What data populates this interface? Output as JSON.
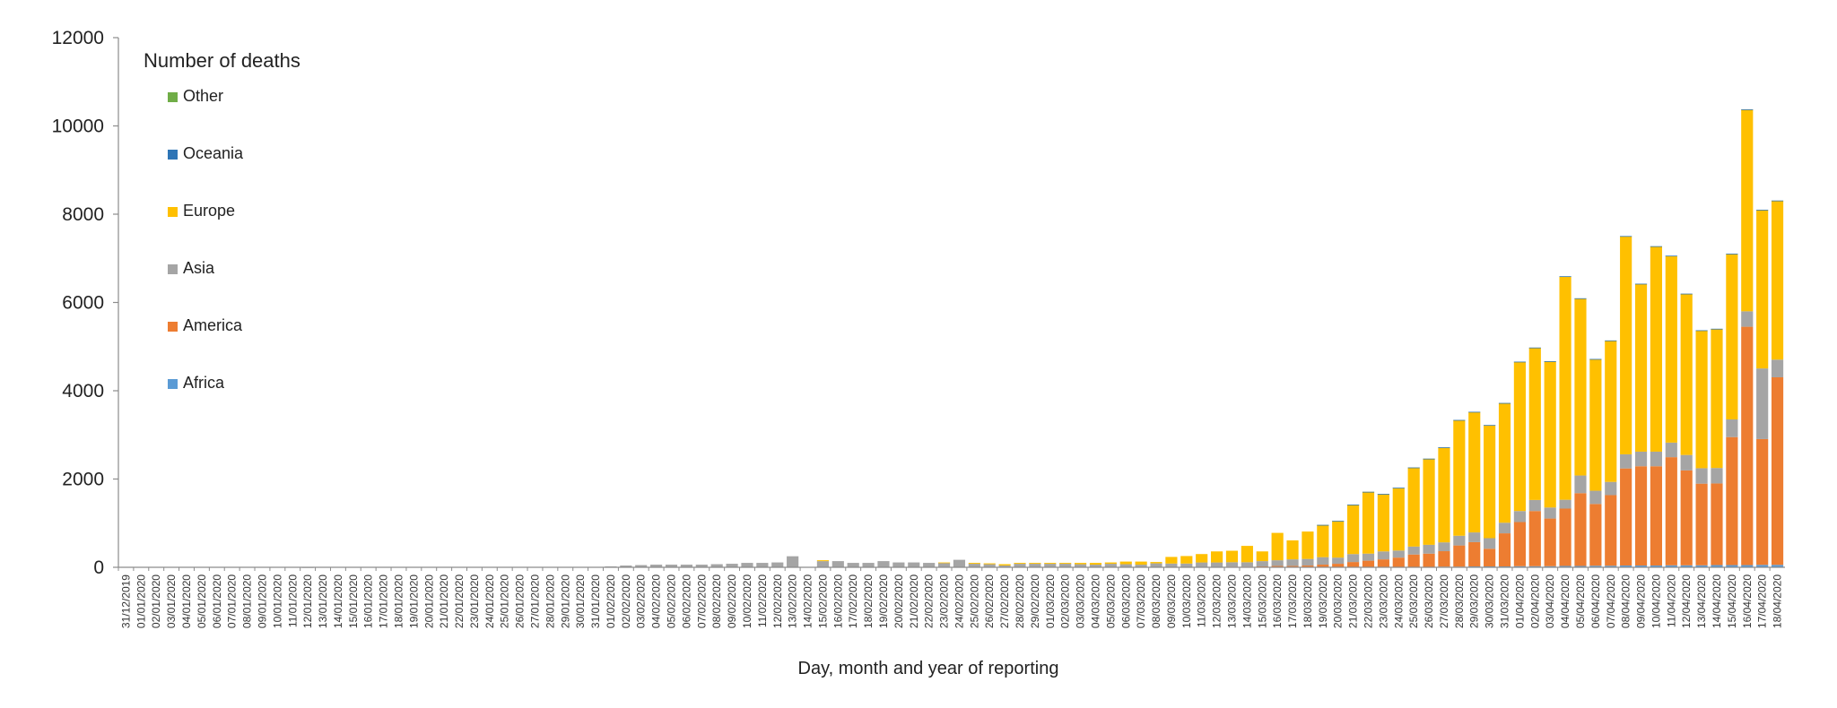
{
  "chart_data": {
    "type": "bar",
    "stacked": true,
    "legend_title": "Number of deaths",
    "legend_position": "top-left",
    "xlabel": "Day, month and year of reporting",
    "ylabel": "",
    "ylim": [
      0,
      12000
    ],
    "yticks": [
      0,
      2000,
      4000,
      6000,
      8000,
      10000,
      12000
    ],
    "grid": false,
    "categories": [
      "31/12/2019",
      "01/01/2020",
      "02/01/2020",
      "03/01/2020",
      "04/01/2020",
      "05/01/2020",
      "06/01/2020",
      "07/01/2020",
      "08/01/2020",
      "09/01/2020",
      "10/01/2020",
      "11/01/2020",
      "12/01/2020",
      "13/01/2020",
      "14/01/2020",
      "15/01/2020",
      "16/01/2020",
      "17/01/2020",
      "18/01/2020",
      "19/01/2020",
      "20/01/2020",
      "21/01/2020",
      "22/01/2020",
      "23/01/2020",
      "24/01/2020",
      "25/01/2020",
      "26/01/2020",
      "27/01/2020",
      "28/01/2020",
      "29/01/2020",
      "30/01/2020",
      "31/01/2020",
      "01/02/2020",
      "02/02/2020",
      "03/02/2020",
      "04/02/2020",
      "05/02/2020",
      "06/02/2020",
      "07/02/2020",
      "08/02/2020",
      "09/02/2020",
      "10/02/2020",
      "11/02/2020",
      "12/02/2020",
      "13/02/2020",
      "14/02/2020",
      "15/02/2020",
      "16/02/2020",
      "17/02/2020",
      "18/02/2020",
      "19/02/2020",
      "20/02/2020",
      "21/02/2020",
      "22/02/2020",
      "23/02/2020",
      "24/02/2020",
      "25/02/2020",
      "26/02/2020",
      "27/02/2020",
      "28/02/2020",
      "29/02/2020",
      "01/03/2020",
      "02/03/2020",
      "03/03/2020",
      "04/03/2020",
      "05/03/2020",
      "06/03/2020",
      "07/03/2020",
      "08/03/2020",
      "09/03/2020",
      "10/03/2020",
      "11/03/2020",
      "12/03/2020",
      "13/03/2020",
      "14/03/2020",
      "15/03/2020",
      "16/03/2020",
      "17/03/2020",
      "18/03/2020",
      "19/03/2020",
      "20/03/2020",
      "21/03/2020",
      "22/03/2020",
      "23/03/2020",
      "24/03/2020",
      "25/03/2020",
      "26/03/2020",
      "27/03/2020",
      "28/03/2020",
      "29/03/2020",
      "30/03/2020",
      "31/03/2020",
      "01/04/2020",
      "02/04/2020",
      "03/04/2020",
      "04/04/2020",
      "05/04/2020",
      "06/04/2020",
      "07/04/2020",
      "08/04/2020",
      "09/04/2020",
      "10/04/2020",
      "11/04/2020",
      "12/04/2020",
      "13/04/2020",
      "14/04/2020",
      "15/04/2020",
      "16/04/2020",
      "17/04/2020",
      "18/04/2020"
    ],
    "series": [
      {
        "name": "Africa",
        "color": "#5B9BD5",
        "values": [
          0,
          0,
          0,
          0,
          0,
          0,
          0,
          0,
          0,
          0,
          0,
          0,
          0,
          0,
          0,
          0,
          0,
          0,
          0,
          0,
          0,
          0,
          0,
          0,
          0,
          0,
          0,
          0,
          0,
          0,
          0,
          0,
          0,
          0,
          0,
          0,
          0,
          0,
          0,
          0,
          0,
          0,
          0,
          0,
          0,
          0,
          0,
          0,
          0,
          0,
          0,
          0,
          0,
          0,
          0,
          0,
          0,
          0,
          0,
          0,
          0,
          0,
          0,
          0,
          0,
          0,
          0,
          0,
          0,
          0,
          0,
          0,
          0,
          0,
          0,
          0,
          0,
          0,
          0,
          0,
          0,
          0,
          0,
          0,
          0,
          10,
          10,
          15,
          15,
          20,
          20,
          20,
          25,
          25,
          25,
          30,
          30,
          35,
          35,
          40,
          40,
          40,
          45,
          45,
          45,
          50,
          50,
          50,
          55,
          55
        ]
      },
      {
        "name": "America",
        "color": "#ED7D31",
        "values": [
          0,
          0,
          0,
          0,
          0,
          0,
          0,
          0,
          0,
          0,
          0,
          0,
          0,
          0,
          0,
          0,
          0,
          0,
          0,
          0,
          0,
          0,
          0,
          0,
          0,
          0,
          0,
          0,
          0,
          0,
          0,
          0,
          0,
          0,
          0,
          0,
          0,
          0,
          0,
          0,
          0,
          0,
          0,
          0,
          0,
          0,
          0,
          0,
          0,
          0,
          0,
          0,
          0,
          0,
          0,
          0,
          0,
          0,
          0,
          0,
          0,
          0,
          0,
          0,
          0,
          0,
          0,
          0,
          0,
          5,
          5,
          10,
          10,
          15,
          15,
          20,
          30,
          30,
          40,
          60,
          80,
          120,
          150,
          180,
          220,
          280,
          300,
          350,
          480,
          550,
          400,
          750,
          1000,
          1250,
          1080,
          1300,
          1650,
          1400,
          1600,
          2200,
          2250,
          2250,
          2450,
          2150,
          1850,
          1850,
          2900,
          5400,
          2850,
          4250
        ]
      },
      {
        "name": "Asia",
        "color": "#A5A5A5",
        "values": [
          0,
          0,
          0,
          0,
          0,
          0,
          0,
          0,
          0,
          0,
          0,
          0,
          1,
          0,
          0,
          0,
          0,
          0,
          0,
          0,
          0,
          0,
          0,
          0,
          0,
          0,
          0,
          0,
          0,
          0,
          10,
          10,
          20,
          40,
          50,
          60,
          60,
          60,
          60,
          70,
          80,
          100,
          100,
          110,
          250,
          0,
          140,
          140,
          100,
          100,
          140,
          110,
          110,
          100,
          100,
          170,
          80,
          70,
          40,
          80,
          80,
          80,
          80,
          70,
          60,
          80,
          70,
          60,
          90,
          80,
          80,
          100,
          100,
          100,
          100,
          120,
          130,
          150,
          150,
          170,
          140,
          180,
          160,
          180,
          160,
          180,
          200,
          200,
          220,
          220,
          240,
          240,
          250,
          250,
          250,
          200,
          400,
          300,
          300,
          320,
          330,
          330,
          330,
          350,
          350,
          350,
          400,
          350,
          1600,
          400
        ]
      },
      {
        "name": "Europe",
        "color": "#FFC000",
        "values": [
          0,
          0,
          0,
          0,
          0,
          0,
          0,
          0,
          0,
          0,
          0,
          0,
          0,
          0,
          0,
          0,
          0,
          0,
          0,
          0,
          0,
          0,
          0,
          0,
          0,
          0,
          0,
          0,
          0,
          0,
          0,
          0,
          0,
          0,
          0,
          0,
          0,
          0,
          0,
          0,
          0,
          0,
          0,
          0,
          0,
          0,
          20,
          0,
          0,
          0,
          0,
          0,
          0,
          0,
          10,
          0,
          20,
          20,
          30,
          20,
          20,
          20,
          20,
          30,
          40,
          30,
          60,
          70,
          30,
          150,
          170,
          190,
          250,
          260,
          370,
          220,
          620,
          430,
          620,
          730,
          830,
          1120,
          1400,
          1300,
          1420,
          1790,
          1950,
          2150,
          2620,
          2730,
          2560,
          2710,
          3380,
          3450,
          3310,
          5060,
          4010,
          2980,
          3200,
          4940,
          3800,
          4650,
          4230,
          3650,
          3120,
          3150,
          3750,
          4570,
          3590,
          3600
        ]
      },
      {
        "name": "Oceania",
        "color": "#2E75B6",
        "values": [
          0,
          0,
          0,
          0,
          0,
          0,
          0,
          0,
          0,
          0,
          0,
          0,
          0,
          0,
          0,
          0,
          0,
          0,
          0,
          0,
          0,
          0,
          0,
          0,
          0,
          0,
          0,
          0,
          0,
          0,
          0,
          0,
          0,
          0,
          0,
          0,
          0,
          0,
          0,
          0,
          0,
          0,
          0,
          0,
          0,
          0,
          0,
          0,
          0,
          0,
          0,
          0,
          0,
          0,
          0,
          0,
          0,
          0,
          0,
          0,
          0,
          0,
          0,
          0,
          0,
          0,
          0,
          0,
          0,
          0,
          0,
          0,
          0,
          0,
          0,
          0,
          0,
          0,
          0,
          1,
          1,
          1,
          1,
          2,
          2,
          2,
          2,
          3,
          3,
          3,
          3,
          3,
          4,
          4,
          4,
          4,
          5,
          5,
          5,
          5,
          5,
          5,
          5,
          5,
          5,
          5,
          5,
          5,
          5,
          5
        ]
      },
      {
        "name": "Other",
        "color": "#70AD47",
        "values": [
          0,
          0,
          0,
          0,
          0,
          0,
          0,
          0,
          0,
          0,
          0,
          0,
          0,
          0,
          0,
          0,
          0,
          0,
          0,
          0,
          0,
          0,
          0,
          0,
          0,
          0,
          0,
          0,
          0,
          0,
          0,
          0,
          0,
          0,
          0,
          0,
          0,
          0,
          0,
          0,
          0,
          0,
          0,
          0,
          0,
          0,
          0,
          0,
          0,
          0,
          0,
          0,
          0,
          0,
          0,
          0,
          0,
          0,
          0,
          0,
          0,
          0,
          0,
          0,
          0,
          0,
          0,
          0,
          0,
          0,
          0,
          0,
          0,
          0,
          0,
          0,
          0,
          0,
          0,
          0,
          0,
          0,
          0,
          0,
          0,
          0,
          0,
          0,
          0,
          0,
          0,
          0,
          0,
          0,
          0,
          0,
          0,
          0,
          0,
          0,
          0,
          0,
          0,
          0,
          0,
          0,
          0,
          0,
          0,
          0
        ]
      }
    ]
  }
}
